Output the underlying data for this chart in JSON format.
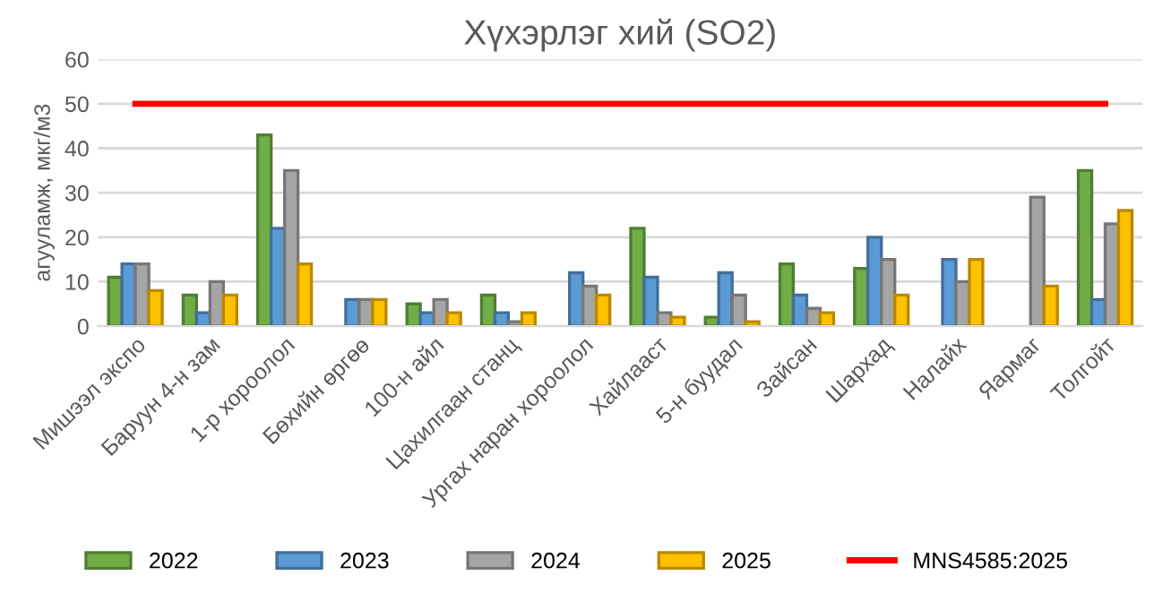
{
  "chart_data": {
    "type": "bar",
    "title": "Хүхэрлэг хий (SO2)",
    "ylabel": "агууламж, мкг/м3",
    "categories": [
      "Мишээл экспо",
      "Баруун 4-н зам",
      "1-р хороолол",
      "Бөхийн өргөө",
      "100-н айл",
      "Цахилгаан станц",
      "Ургах наран хороолол",
      "Хайлааст",
      "5-н буудал",
      "Зайсан",
      "Шархад",
      "Налайх",
      "Яармаг",
      "Толгойт"
    ],
    "series": [
      {
        "name": "2022",
        "color": "#70ad47",
        "values": [
          11,
          7,
          43,
          null,
          5,
          7,
          null,
          22,
          2,
          14,
          13,
          null,
          null,
          35
        ]
      },
      {
        "name": "2023",
        "color": "#5b9bd5",
        "values": [
          14,
          3,
          22,
          6,
          3,
          3,
          12,
          11,
          12,
          7,
          20,
          15,
          null,
          6
        ]
      },
      {
        "name": "2024",
        "color": "#a5a5a5",
        "values": [
          14,
          10,
          35,
          6,
          6,
          1,
          9,
          3,
          7,
          4,
          15,
          10,
          29,
          23
        ]
      },
      {
        "name": "2025",
        "color": "#ffc000",
        "values": [
          8,
          7,
          14,
          6,
          3,
          3,
          7,
          2,
          1,
          3,
          7,
          15,
          9,
          26
        ]
      },
      {
        "name": "MNS4585:2025",
        "type": "line",
        "color": "#ff0000",
        "values": [
          50,
          50,
          50,
          50,
          50,
          50,
          50,
          50,
          50,
          50,
          50,
          50,
          50,
          50
        ]
      }
    ],
    "ylim": [
      0,
      60
    ],
    "yticks": [
      0,
      10,
      20,
      30,
      40,
      50,
      60
    ],
    "grid": "y",
    "legend": "bottom"
  }
}
